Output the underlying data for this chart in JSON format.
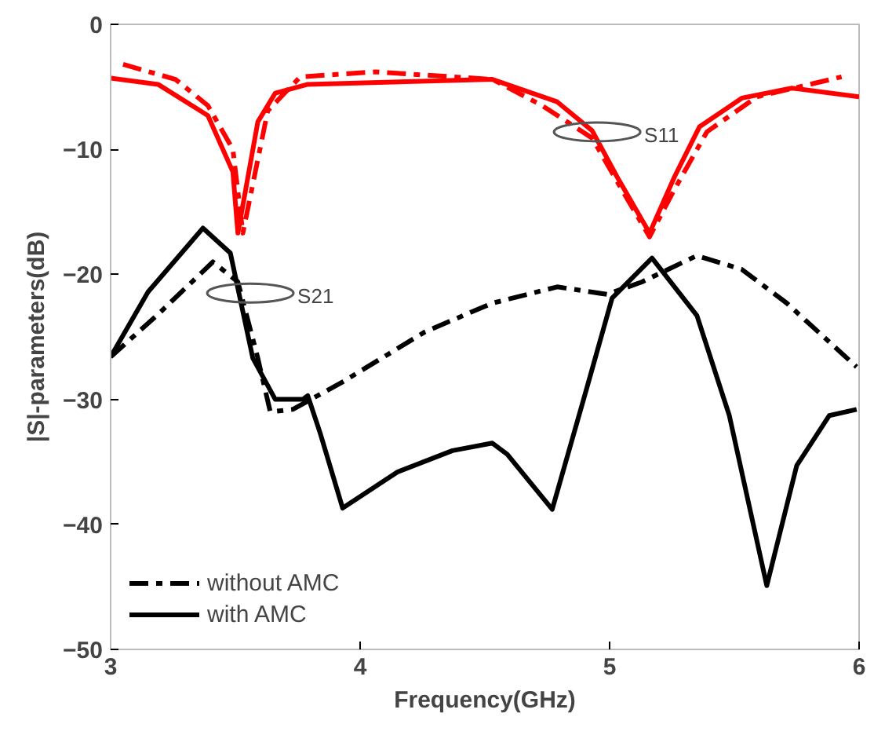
{
  "chart_data": {
    "type": "line",
    "xlabel": "Frequency(GHz)",
    "ylabel": "|S|-parameters(dB)",
    "xlim": [
      3,
      6
    ],
    "ylim": [
      -50,
      0
    ],
    "xticks": [
      3,
      4,
      5,
      6
    ],
    "yticks": [
      0,
      -10,
      -20,
      -30,
      -40,
      -50
    ],
    "grid": false,
    "legend": "bottom left",
    "marker": "none",
    "annotations": [
      {
        "text": "S11",
        "x": 4.95,
        "y": -8.6
      },
      {
        "text": "S21",
        "x": 3.56,
        "y": -21.5
      }
    ],
    "series": [
      {
        "color": "#ff0000",
        "line_style": "dashed",
        "x": [
          3.05,
          3.26,
          3.39,
          3.49,
          3.53,
          3.63,
          3.76,
          4.06,
          4.53,
          4.73,
          4.93,
          5.06,
          5.16,
          5.26,
          5.39,
          5.59,
          5.93
        ],
        "values": [
          -3.2,
          -4.4,
          -6.5,
          -10.0,
          -16.7,
          -6.9,
          -4.2,
          -3.8,
          -4.4,
          -6.5,
          -9.1,
          -13.6,
          -17.0,
          -13.2,
          -8.6,
          -5.8,
          -4.2
        ]
      },
      {
        "color": "#ff0000",
        "line_style": "solid",
        "x": [
          3.0,
          3.19,
          3.39,
          3.49,
          3.51,
          3.59,
          3.66,
          3.79,
          4.33,
          4.53,
          4.79,
          4.93,
          5.03,
          5.16,
          5.26,
          5.36,
          5.53,
          5.73,
          6.0
        ],
        "values": [
          -4.3,
          -4.8,
          -7.3,
          -11.8,
          -16.7,
          -7.8,
          -5.5,
          -4.8,
          -4.5,
          -4.4,
          -6.2,
          -8.5,
          -12.2,
          -16.7,
          -12.2,
          -8.2,
          -5.9,
          -5.1,
          -5.8
        ]
      },
      {
        "name": "without AMC",
        "color": "#000000",
        "line_style": "dashed",
        "x": [
          3.0,
          3.19,
          3.41,
          3.51,
          3.59,
          3.64,
          3.73,
          3.93,
          4.26,
          4.53,
          4.79,
          4.99,
          5.13,
          5.35,
          5.53,
          5.71,
          5.99
        ],
        "values": [
          -26.6,
          -23.2,
          -19.0,
          -20.6,
          -26.7,
          -31.0,
          -30.8,
          -28.6,
          -24.6,
          -22.3,
          -21.0,
          -21.6,
          -20.6,
          -18.5,
          -19.6,
          -22.3,
          -27.4
        ]
      },
      {
        "name": "with AMC",
        "color": "#000000",
        "line_style": "solid",
        "x": [
          3.0,
          3.15,
          3.37,
          3.48,
          3.57,
          3.66,
          3.77,
          3.79,
          3.84,
          3.93,
          4.15,
          4.37,
          4.53,
          4.59,
          4.77,
          4.91,
          5.01,
          5.17,
          5.35,
          5.48,
          5.63,
          5.75,
          5.88,
          5.99
        ],
        "values": [
          -26.6,
          -21.4,
          -16.3,
          -18.3,
          -26.7,
          -30.0,
          -30.0,
          -29.7,
          -32.7,
          -38.7,
          -35.8,
          -34.1,
          -33.5,
          -34.4,
          -38.8,
          -29.0,
          -21.9,
          -18.7,
          -23.3,
          -31.3,
          -44.9,
          -35.3,
          -31.3,
          -30.8
        ]
      }
    ]
  }
}
